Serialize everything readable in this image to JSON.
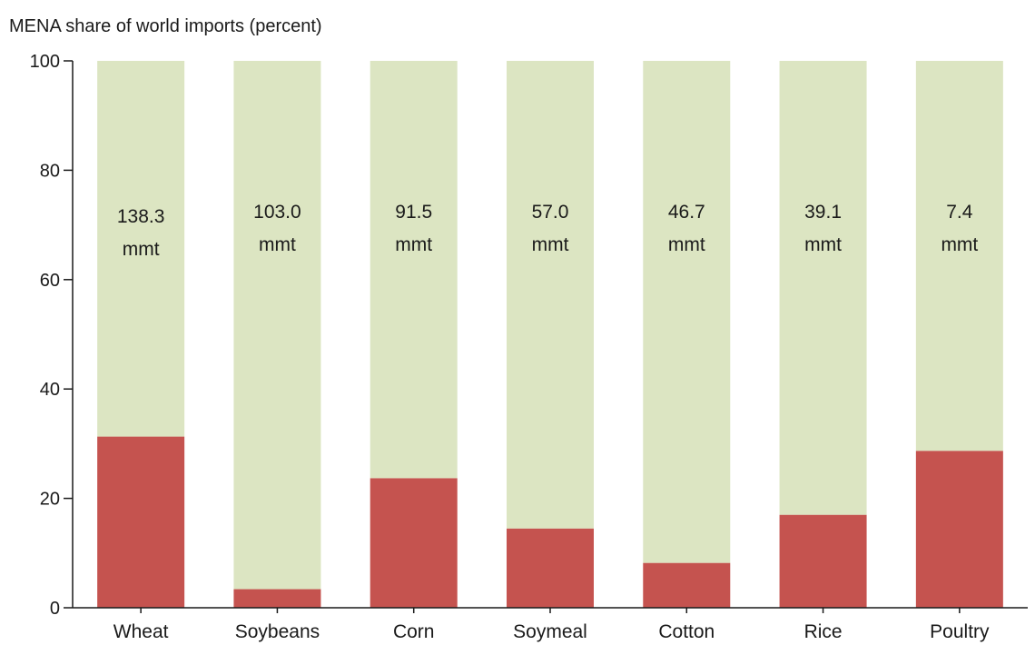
{
  "chart_data": {
    "type": "bar",
    "stacked": true,
    "title": "MENA share of world imports (percent)",
    "xlabel": "",
    "ylabel": "",
    "ylim": [
      0,
      100
    ],
    "yticks": [
      0,
      20,
      40,
      60,
      80,
      100
    ],
    "grid": false,
    "categories": [
      "Wheat",
      "Soybeans",
      "Corn",
      "Soymeal",
      "Cotton",
      "Rice",
      "Poultry"
    ],
    "series": [
      {
        "values": [
          31.3,
          3.4,
          23.7,
          14.5,
          8.2,
          17.0,
          28.7
        ],
        "color": "#c5534f"
      },
      {
        "values": [
          68.7,
          96.6,
          76.3,
          85.5,
          91.8,
          83.0,
          71.3
        ],
        "color": "#dce5c2"
      }
    ],
    "bar_labels": [
      [
        "138.3",
        "mmt"
      ],
      [
        "103.0",
        "mmt"
      ],
      [
        "91.5",
        "mmt"
      ],
      [
        "57.0",
        "mmt"
      ],
      [
        "46.7",
        "mmt"
      ],
      [
        "39.1",
        "mmt"
      ],
      [
        "7.4",
        "mmt"
      ]
    ]
  }
}
